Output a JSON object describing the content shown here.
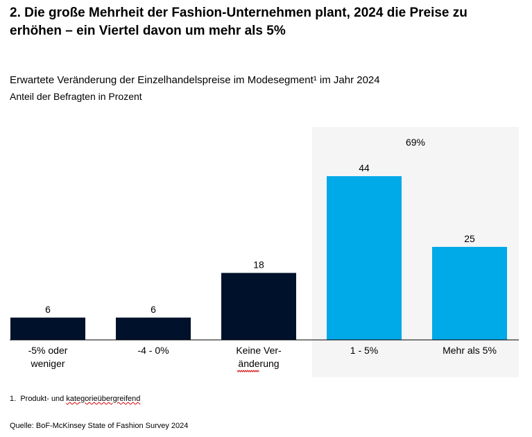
{
  "headline": "2. Die große Mehrheit der Fashion-Unternehmen plant, 2024 die Preise zu erhöhen – ein Viertel davon um mehr als 5%",
  "footnote": {
    "number": "1.",
    "text_before": "Produkt- und",
    "squiggle": "kategorieübergreifend"
  },
  "source": "Quelle: BoF-McKinsey State of Fashion Survey 2024",
  "colors": {
    "dark_bar": "#00112b",
    "highlight_bar": "#00a9e8",
    "highlight_panel": "#f5f5f5"
  },
  "chart_data": {
    "type": "bar",
    "title": "Erwartete Veränderung der Einzelhandelspreise im Modesegment¹ im Jahr 2024",
    "subtitle": "Anteil der Befragten in Prozent",
    "categories": [
      [
        "-5% oder",
        "weniger"
      ],
      [
        "-4 - 0%"
      ],
      [
        "Keine Ver-",
        "änderung"
      ],
      [
        "1  - 5%"
      ],
      [
        "Mehr als 5%"
      ]
    ],
    "values": [
      6,
      6,
      18,
      44,
      25
    ],
    "data_labels": [
      "6",
      "6",
      "18",
      "44",
      "25"
    ],
    "highlighted": [
      false,
      false,
      false,
      true,
      true
    ],
    "highlight_group_label": "69%",
    "ylim": [
      0,
      44
    ],
    "grid": false,
    "legend": "none"
  }
}
